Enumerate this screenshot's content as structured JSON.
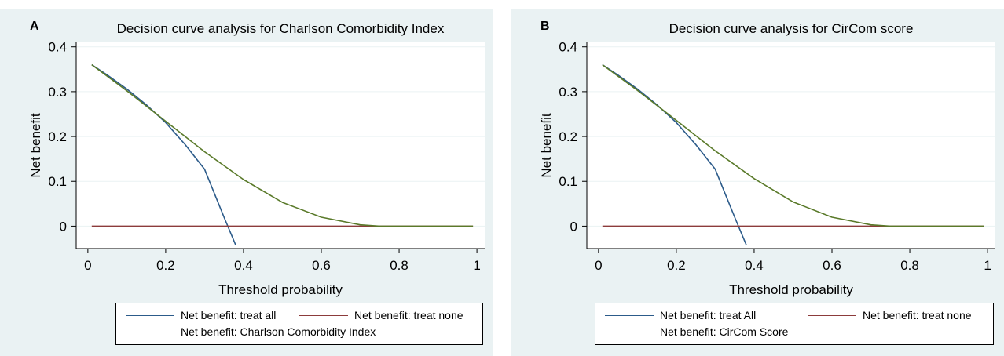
{
  "chart_data": [
    {
      "type": "line",
      "panel_label": "A",
      "title": "Decision curve analysis for Charlson Comorbidity Index",
      "xlabel": "Threshold probability",
      "ylabel": "Net benefit",
      "xlim": [
        -0.03,
        1.02
      ],
      "ylim": [
        -0.05,
        0.41
      ],
      "x_ticks": [
        0,
        0.2,
        0.4,
        0.6,
        0.8,
        1
      ],
      "x_tick_labels": [
        "0",
        "0.2",
        "0.4",
        "0.6",
        "0.8",
        "1"
      ],
      "y_ticks": [
        0,
        0.1,
        0.2,
        0.3,
        0.4
      ],
      "y_tick_labels": [
        "0",
        "0.1",
        "0.2",
        "0.3",
        "0.4"
      ],
      "grid": "horizontal",
      "legend_position": "bottom",
      "series": [
        {
          "name": "Net benefit: treat all",
          "color": "#2c5b8a",
          "x": [
            0.01,
            0.05,
            0.1,
            0.15,
            0.2,
            0.25,
            0.3,
            0.35,
            0.38
          ],
          "y": [
            0.36,
            0.337,
            0.306,
            0.271,
            0.231,
            0.182,
            0.127,
            0.02,
            -0.042
          ]
        },
        {
          "name": "Net benefit: treat none",
          "color": "#8c3b3b",
          "x": [
            0.01,
            0.99
          ],
          "y": [
            0,
            0
          ]
        },
        {
          "name": "Net benefit: Charlson Comorbidity Index",
          "color": "#5a7a2a",
          "x": [
            0.01,
            0.1,
            0.2,
            0.3,
            0.4,
            0.5,
            0.6,
            0.7,
            0.75,
            0.8,
            0.9,
            0.99
          ],
          "y": [
            0.36,
            0.302,
            0.234,
            0.166,
            0.104,
            0.053,
            0.02,
            0.003,
            0,
            0,
            0,
            0
          ]
        }
      ]
    },
    {
      "type": "line",
      "panel_label": "B",
      "title": "Decision curve analysis for CirCom score",
      "xlabel": "Threshold probability",
      "ylabel": "Net benefit",
      "xlim": [
        -0.03,
        1.02
      ],
      "ylim": [
        -0.05,
        0.41
      ],
      "x_ticks": [
        0,
        0.2,
        0.4,
        0.6,
        0.8,
        1
      ],
      "x_tick_labels": [
        "0",
        "0.2",
        "0.4",
        "0.6",
        "0.8",
        "1"
      ],
      "y_ticks": [
        0,
        0.1,
        0.2,
        0.3,
        0.4
      ],
      "y_tick_labels": [
        "0",
        "0.1",
        "0.2",
        "0.3",
        "0.4"
      ],
      "grid": "horizontal",
      "legend_position": "bottom",
      "series": [
        {
          "name": "Net benefit: treat All",
          "color": "#2c5b8a",
          "x": [
            0.01,
            0.05,
            0.1,
            0.15,
            0.2,
            0.25,
            0.3,
            0.35,
            0.38
          ],
          "y": [
            0.36,
            0.337,
            0.306,
            0.271,
            0.231,
            0.182,
            0.127,
            0.02,
            -0.042
          ]
        },
        {
          "name": "Net benefit: treat none",
          "color": "#8c3b3b",
          "x": [
            0.01,
            0.99
          ],
          "y": [
            0,
            0
          ]
        },
        {
          "name": "Net benefit: CirCom Score",
          "color": "#5a7a2a",
          "x": [
            0.01,
            0.1,
            0.2,
            0.3,
            0.4,
            0.5,
            0.6,
            0.7,
            0.75,
            0.8,
            0.9,
            0.99
          ],
          "y": [
            0.36,
            0.303,
            0.236,
            0.168,
            0.106,
            0.054,
            0.02,
            0.003,
            0,
            0,
            0,
            0
          ]
        }
      ]
    }
  ]
}
